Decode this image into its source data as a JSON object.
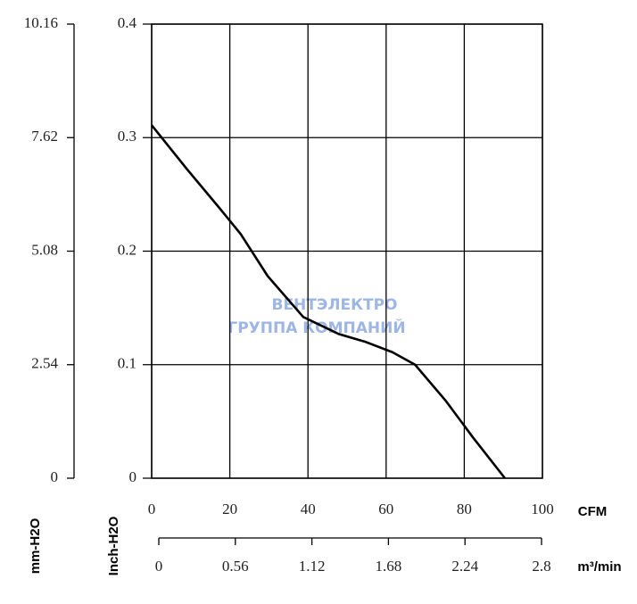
{
  "chart_data": {
    "type": "line",
    "xlabel": "CFM",
    "ylabel": "Inch-H2O",
    "y2label": "mm-H2O",
    "x2label": "m³/min",
    "watermark": "ВЕНТЭЛЕКТРО",
    "watermark_sub": "ГРУППА КОМПАНИЙ",
    "x": [
      0,
      9.1,
      17.1,
      22.8,
      29.7,
      38.8,
      47.9,
      54.8,
      61.6,
      67.4,
      75.3,
      82.2,
      90.4
    ],
    "series": [
      {
        "name": "Inch-H2O",
        "color": "#000000",
        "values": [
          0.311,
          0.272,
          0.239,
          0.215,
          0.178,
          0.142,
          0.127,
          0.12,
          0.111,
          0.1,
          0.068,
          0.036,
          0
        ]
      }
    ],
    "xlim": [
      0,
      100
    ],
    "xticks": [
      0,
      20,
      40,
      60,
      80,
      100
    ],
    "ylim": [
      0,
      0.4
    ],
    "yticks": [
      0,
      0.1,
      0.2,
      0.3,
      0.4
    ],
    "y2lim": [
      0,
      10.16
    ],
    "y2ticks": [
      0,
      2.54,
      5.08,
      7.62,
      10.16
    ],
    "x2lim": [
      0,
      2.8
    ],
    "x2ticks": [
      0,
      0.56,
      1.12,
      1.68,
      2.24,
      2.8
    ],
    "grid": true
  }
}
